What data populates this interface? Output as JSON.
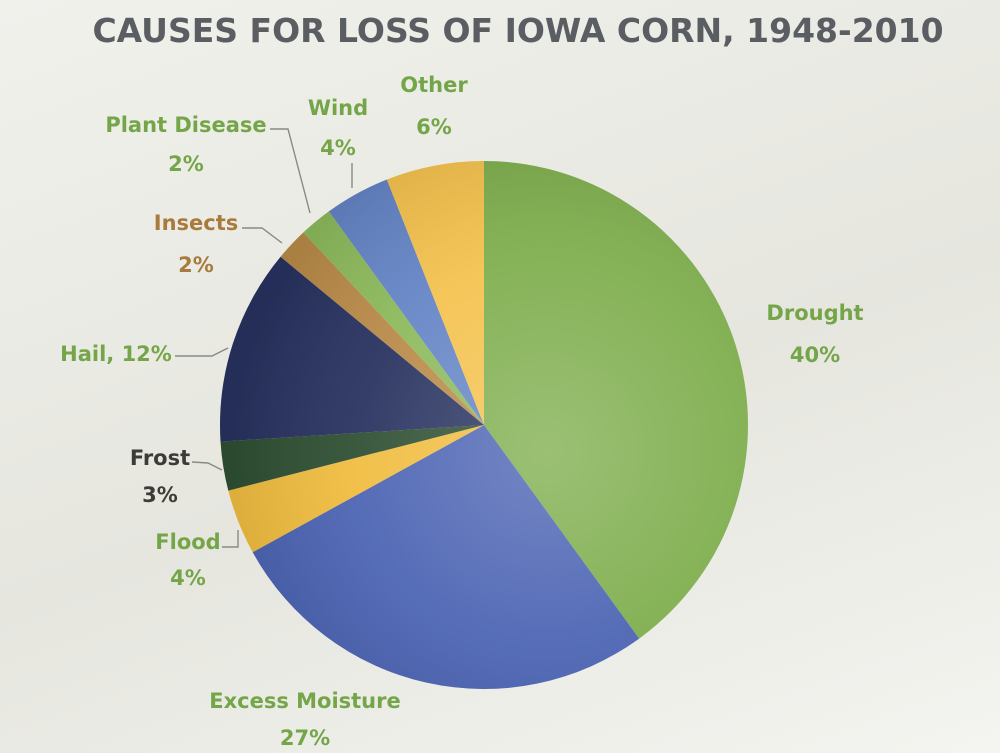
{
  "chart_data": {
    "type": "pie",
    "title": "CAUSES FOR LOSS OF IOWA CORN, 1948-2010",
    "slices": [
      {
        "name": "Drought",
        "value": 40,
        "label": "40%",
        "color": "#7fae4e"
      },
      {
        "name": "Excess Moisture",
        "value": 27,
        "label": "27%",
        "color": "#4c64b3"
      },
      {
        "name": "Flood",
        "value": 4,
        "label": "4%",
        "color": "#f0bd40"
      },
      {
        "name": "Frost",
        "value": 3,
        "label": "3%",
        "color": "#2e4f32"
      },
      {
        "name": "Hail",
        "value": 12,
        "label": "12%",
        "color": "#27325f"
      },
      {
        "name": "Insects",
        "value": 2,
        "label": "2%",
        "color": "#b98a48"
      },
      {
        "name": "Plant Disease",
        "value": 2,
        "label": "2%",
        "color": "#8dba5c"
      },
      {
        "name": "Wind",
        "value": 4,
        "label": "4%",
        "color": "#6585c6"
      },
      {
        "name": "Other",
        "value": 6,
        "label": "6%",
        "color": "#f4c24e"
      }
    ],
    "label_colors": {
      "Drought": "#74a548",
      "Excess Moisture": "#74a548",
      "Flood": "#74a548",
      "Frost": "#3b3b38",
      "Hail": "#74a548",
      "Insects": "#a87a3c",
      "Plant Disease": "#74a548",
      "Wind": "#74a548",
      "Other": "#74a548"
    },
    "title_color": "#5a5d62"
  }
}
